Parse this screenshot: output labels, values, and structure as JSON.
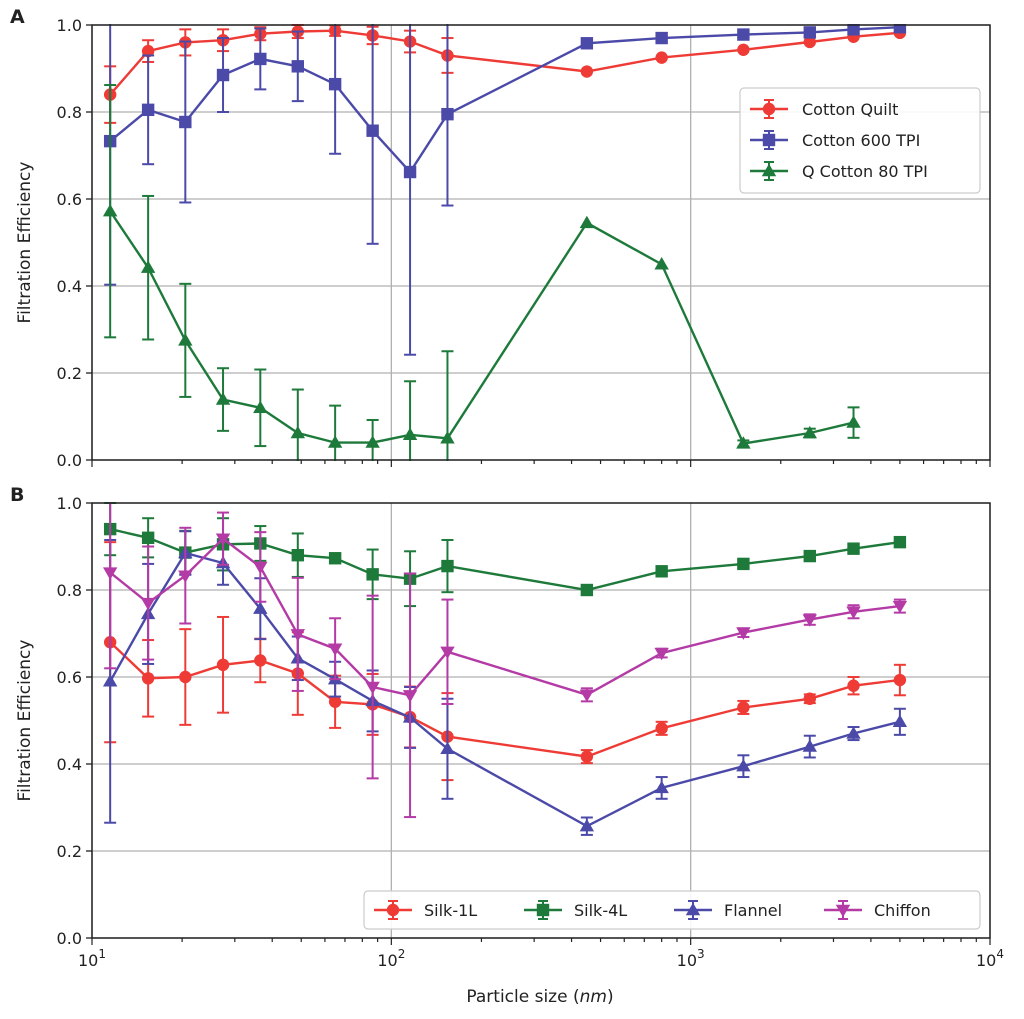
{
  "figure": {
    "x_label_prefix": "Particle size (",
    "x_label_unit": "nm",
    "x_label_suffix": ")",
    "x_ticks": [
      {
        "base": "10",
        "exp": "1"
      },
      {
        "base": "10",
        "exp": "2"
      },
      {
        "base": "10",
        "exp": "3"
      },
      {
        "base": "10",
        "exp": "4"
      }
    ]
  },
  "chart_data": [
    {
      "panel": "A",
      "type": "line",
      "xscale": "log",
      "xlim": [
        10,
        10000
      ],
      "ylim": [
        0.0,
        1.0
      ],
      "ylabel": "Filtration Efficiency",
      "xlabel": "Particle size (nm)",
      "y_ticks": [
        "0.0",
        "0.2",
        "0.4",
        "0.6",
        "0.8",
        "1.0"
      ],
      "grid": true,
      "legend": {
        "placement": "upper-right",
        "columns": 1
      },
      "series": [
        {
          "name": "Cotton Quilt",
          "color": "#ef3b36",
          "marker": "circle",
          "x": [
            11.5,
            15.4,
            20.5,
            27.4,
            36.5,
            48.7,
            64.9,
            86.6,
            115.5,
            154,
            450,
            800,
            1500,
            2500,
            3500,
            5000
          ],
          "y": [
            0.84,
            0.94,
            0.96,
            0.965,
            0.98,
            0.985,
            0.987,
            0.976,
            0.962,
            0.93,
            0.893,
            0.925,
            0.943,
            0.961,
            0.973,
            0.982
          ],
          "err": [
            0.065,
            0.025,
            0.03,
            0.025,
            0.015,
            0.015,
            0.012,
            0.02,
            0.025,
            0.04,
            0,
            0,
            0,
            0,
            0,
            0
          ]
        },
        {
          "name": "Cotton 600 TPI",
          "color": "#4b4aa8",
          "marker": "square",
          "x": [
            11.5,
            15.4,
            20.5,
            27.4,
            36.5,
            48.7,
            64.9,
            86.6,
            115.5,
            154,
            450,
            800,
            1500,
            2500,
            3500,
            5000
          ],
          "y": [
            0.733,
            0.805,
            0.777,
            0.885,
            0.922,
            0.905,
            0.864,
            0.757,
            0.662,
            0.795,
            0.958,
            0.97,
            0.978,
            0.983,
            0.99,
            0.995
          ],
          "err": [
            0.33,
            0.125,
            0.185,
            0.085,
            0.07,
            0.08,
            0.16,
            0.26,
            0.42,
            0.21,
            0,
            0,
            0,
            0,
            0,
            0
          ]
        },
        {
          "name": "Q Cotton 80 TPI",
          "color": "#1d7a3a",
          "marker": "triangle-up",
          "x": [
            11.5,
            15.4,
            20.5,
            27.4,
            36.5,
            48.7,
            64.9,
            86.6,
            115.5,
            154,
            450,
            800,
            1500,
            2500,
            3500
          ],
          "y": [
            0.572,
            0.442,
            0.275,
            0.139,
            0.12,
            0.062,
            0.04,
            0.04,
            0.058,
            0.05,
            0.545,
            0.45,
            0.038,
            0.062,
            0.086
          ],
          "err": [
            0.29,
            0.165,
            0.13,
            0.072,
            0.088,
            0.1,
            0.085,
            0.052,
            0.123,
            0.2,
            0,
            0,
            0.007,
            0.01,
            0.035
          ]
        }
      ]
    },
    {
      "panel": "B",
      "type": "line",
      "xscale": "log",
      "xlim": [
        10,
        10000
      ],
      "ylim": [
        0.0,
        1.0
      ],
      "ylabel": "Filtration Efficiency",
      "xlabel": "Particle size (nm)",
      "y_ticks": [
        "0.0",
        "0.2",
        "0.4",
        "0.6",
        "0.8",
        "1.0"
      ],
      "grid": true,
      "legend": {
        "placement": "lower-right",
        "columns": 4
      },
      "series": [
        {
          "name": "Silk-1L",
          "color": "#ef3b36",
          "marker": "circle",
          "x": [
            11.5,
            15.4,
            20.5,
            27.4,
            36.5,
            48.7,
            64.9,
            86.6,
            115.5,
            154,
            450,
            800,
            1500,
            2500,
            3500,
            5000
          ],
          "y": [
            0.68,
            0.597,
            0.6,
            0.628,
            0.638,
            0.608,
            0.543,
            0.537,
            0.508,
            0.463,
            0.417,
            0.482,
            0.53,
            0.55,
            0.58,
            0.593
          ],
          "err": [
            0.23,
            0.088,
            0.11,
            0.11,
            0.05,
            0.095,
            0.06,
            0.07,
            0.07,
            0.1,
            0.015,
            0.015,
            0.015,
            0.01,
            0.02,
            0.035
          ]
        },
        {
          "name": "Silk-4L",
          "color": "#1d7a3a",
          "marker": "square",
          "x": [
            11.5,
            15.4,
            20.5,
            27.4,
            36.5,
            48.7,
            64.9,
            86.6,
            115.5,
            154,
            450,
            800,
            1500,
            2500,
            3500,
            5000
          ],
          "y": [
            0.94,
            0.92,
            0.886,
            0.905,
            0.907,
            0.88,
            0.873,
            0.836,
            0.826,
            0.855,
            0.8,
            0.843,
            0.86,
            0.878,
            0.895,
            0.91
          ],
          "err": [
            0.06,
            0.045,
            0.05,
            0.06,
            0.04,
            0.05,
            0.0,
            0.057,
            0.063,
            0.06,
            0.0,
            0.0,
            0.0,
            0.0,
            0.0,
            0.0
          ]
        },
        {
          "name": "Flannel",
          "color": "#4b4aa8",
          "marker": "triangle-up",
          "x": [
            11.5,
            15.4,
            20.5,
            27.4,
            36.5,
            48.7,
            64.9,
            86.6,
            115.5,
            154,
            450,
            800,
            1500,
            2500,
            3500,
            5000
          ],
          "y": [
            0.59,
            0.745,
            0.885,
            0.862,
            0.757,
            0.643,
            0.595,
            0.545,
            0.507,
            0.435,
            0.257,
            0.345,
            0.395,
            0.44,
            0.47,
            0.497
          ],
          "err": [
            0.325,
            0.115,
            0.05,
            0.05,
            0.07,
            0.05,
            0.04,
            0.07,
            0.07,
            0.115,
            0.02,
            0.025,
            0.025,
            0.025,
            0.015,
            0.03
          ]
        },
        {
          "name": "Chiffon",
          "color": "#b43aa6",
          "marker": "triangle-down",
          "x": [
            11.5,
            15.4,
            20.5,
            27.4,
            36.5,
            48.7,
            64.9,
            86.6,
            115.5,
            154,
            450,
            800,
            1500,
            2500,
            3500,
            5000
          ],
          "y": [
            0.84,
            0.77,
            0.833,
            0.918,
            0.853,
            0.698,
            0.665,
            0.577,
            0.558,
            0.658,
            0.559,
            0.655,
            0.702,
            0.732,
            0.75,
            0.763
          ],
          "err": [
            0.22,
            0.13,
            0.11,
            0.06,
            0.08,
            0.13,
            0.07,
            0.21,
            0.28,
            0.12,
            0.015,
            0.01,
            0.01,
            0.012,
            0.015,
            0.015
          ]
        }
      ]
    }
  ]
}
